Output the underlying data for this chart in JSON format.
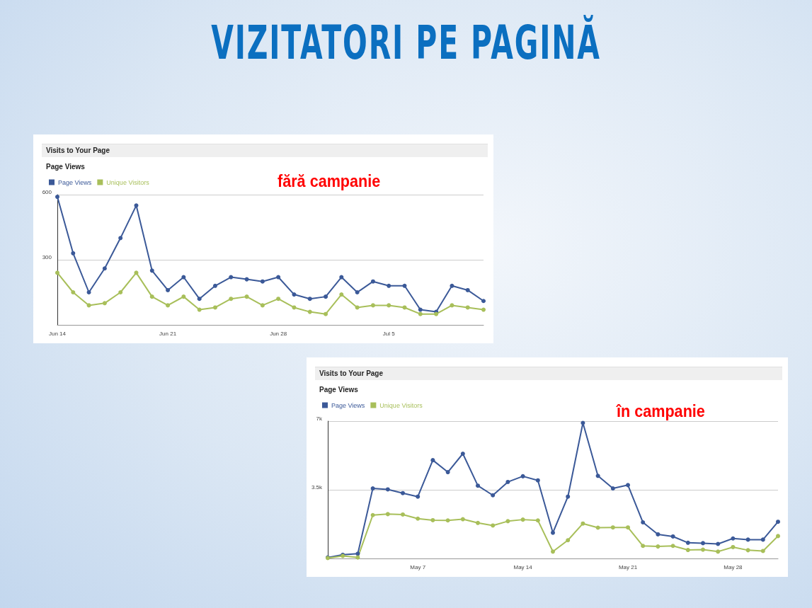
{
  "chart_data": [
    {
      "type": "other",
      "title": "VIZITATORI PE PAGINĂ"
    },
    {
      "type": "line",
      "title": "Visits to Your Page",
      "subtitle": "Page Views",
      "annotations": [
        "fără campanie"
      ],
      "categories": [
        "Jun 14",
        null,
        null,
        null,
        null,
        null,
        null,
        "Jun 21",
        null,
        null,
        null,
        null,
        null,
        null,
        "Jun 28",
        null,
        null,
        null,
        null,
        null,
        null,
        "Jul 5",
        null,
        null,
        null,
        null,
        null,
        null
      ],
      "series": [
        {
          "name": "Page Views",
          "color": "#3b5998",
          "values": [
            590,
            330,
            150,
            260,
            400,
            550,
            250,
            160,
            220,
            120,
            180,
            220,
            210,
            200,
            220,
            140,
            120,
            130,
            220,
            150,
            200,
            180,
            180,
            70,
            60,
            180,
            160,
            110
          ]
        },
        {
          "name": "Unique Visitors",
          "color": "#a8bf5a",
          "values": [
            240,
            150,
            90,
            100,
            150,
            240,
            130,
            90,
            130,
            70,
            80,
            120,
            130,
            90,
            120,
            80,
            60,
            50,
            140,
            80,
            90,
            90,
            80,
            50,
            50,
            90,
            80,
            70
          ]
        }
      ],
      "ylim": [
        0,
        600
      ],
      "yticks": [
        {
          "value": 300,
          "label": "300"
        },
        {
          "value": 600,
          "label": "600"
        }
      ],
      "grid": "y",
      "legend": "top left",
      "marker": "circle",
      "line_style": "solid"
    },
    {
      "type": "line",
      "title": "Visits to Your Page",
      "subtitle": "Page Views",
      "annotations": [
        "în campanie"
      ],
      "categories": [
        null,
        null,
        null,
        null,
        null,
        null,
        "May 7",
        null,
        null,
        null,
        null,
        null,
        null,
        "May 14",
        null,
        null,
        null,
        null,
        null,
        null,
        "May 21",
        null,
        null,
        null,
        null,
        null,
        null,
        "May 28",
        null,
        null,
        null
      ],
      "series": [
        {
          "name": "Page Views",
          "color": "#3b5998",
          "values": [
            50,
            190,
            240,
            3570,
            3520,
            3330,
            3150,
            5010,
            4400,
            5340,
            3710,
            3220,
            3900,
            4190,
            3980,
            1310,
            3150,
            6910,
            4210,
            3570,
            3740,
            1840,
            1230,
            1120,
            800,
            780,
            740,
            1020,
            960,
            960,
            1870
          ]
        },
        {
          "name": "Unique Visitors",
          "color": "#a8bf5a",
          "values": [
            20,
            130,
            50,
            2210,
            2260,
            2240,
            2030,
            1950,
            1940,
            2000,
            1810,
            1680,
            1900,
            1980,
            1940,
            350,
            930,
            1780,
            1570,
            1580,
            1580,
            640,
            610,
            640,
            430,
            450,
            350,
            580,
            420,
            380,
            1140
          ]
        }
      ],
      "ylim": [
        0,
        7000
      ],
      "yticks": [
        {
          "value": 3500,
          "label": "3.5k"
        },
        {
          "value": 7000,
          "label": "7k"
        }
      ],
      "grid": "y",
      "legend": "top left",
      "marker": "circle",
      "line_style": "solid"
    }
  ]
}
